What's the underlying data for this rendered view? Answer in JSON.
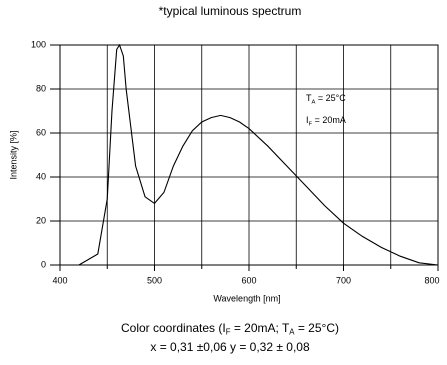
{
  "chart_data": {
    "type": "line",
    "title": "*typical luminous spectrum",
    "x_label": "Wavelength [nm]",
    "y_label": "Intensity [%]",
    "x": [
      420,
      440,
      450,
      455,
      460,
      463,
      467,
      470,
      480,
      490,
      500,
      510,
      520,
      530,
      540,
      550,
      560,
      570,
      580,
      590,
      600,
      620,
      640,
      660,
      680,
      700,
      720,
      740,
      760,
      780,
      800
    ],
    "series": [
      {
        "color": "#000000",
        "values": [
          0,
          5,
          30,
          70,
          98,
          100,
          95,
          80,
          45,
          31,
          28,
          33,
          45,
          54,
          61,
          65,
          67,
          68,
          67,
          65,
          62,
          54,
          45,
          36,
          27,
          19,
          13,
          8,
          4,
          1,
          0
        ]
      }
    ],
    "xlim": [
      400,
      800
    ],
    "ylim": [
      0,
      100
    ],
    "xticks": [
      400,
      500,
      600,
      700,
      800
    ],
    "xminor_ticks": [
      450,
      550,
      650,
      750
    ],
    "yticks": [
      0,
      20,
      40,
      60,
      80,
      100
    ],
    "grid": true,
    "annotations": [
      [
        {
          "text": "T"
        },
        {
          "text": "A",
          "sub": true
        },
        {
          "text": " = 25°C"
        }
      ],
      [
        {
          "text": "I"
        },
        {
          "text": "F",
          "sub": true
        },
        {
          "text": " = 20mA"
        }
      ]
    ],
    "footer": [
      [
        {
          "text": "Color coordinates (I"
        },
        {
          "text": "F",
          "sub": true
        },
        {
          "text": " = 20mA; T"
        },
        {
          "text": "A",
          "sub": true
        },
        {
          "text": " = 25°C)"
        }
      ],
      [
        {
          "text": "x = 0,31 ±0,06   y = 0,32 ± 0,08"
        }
      ]
    ]
  }
}
